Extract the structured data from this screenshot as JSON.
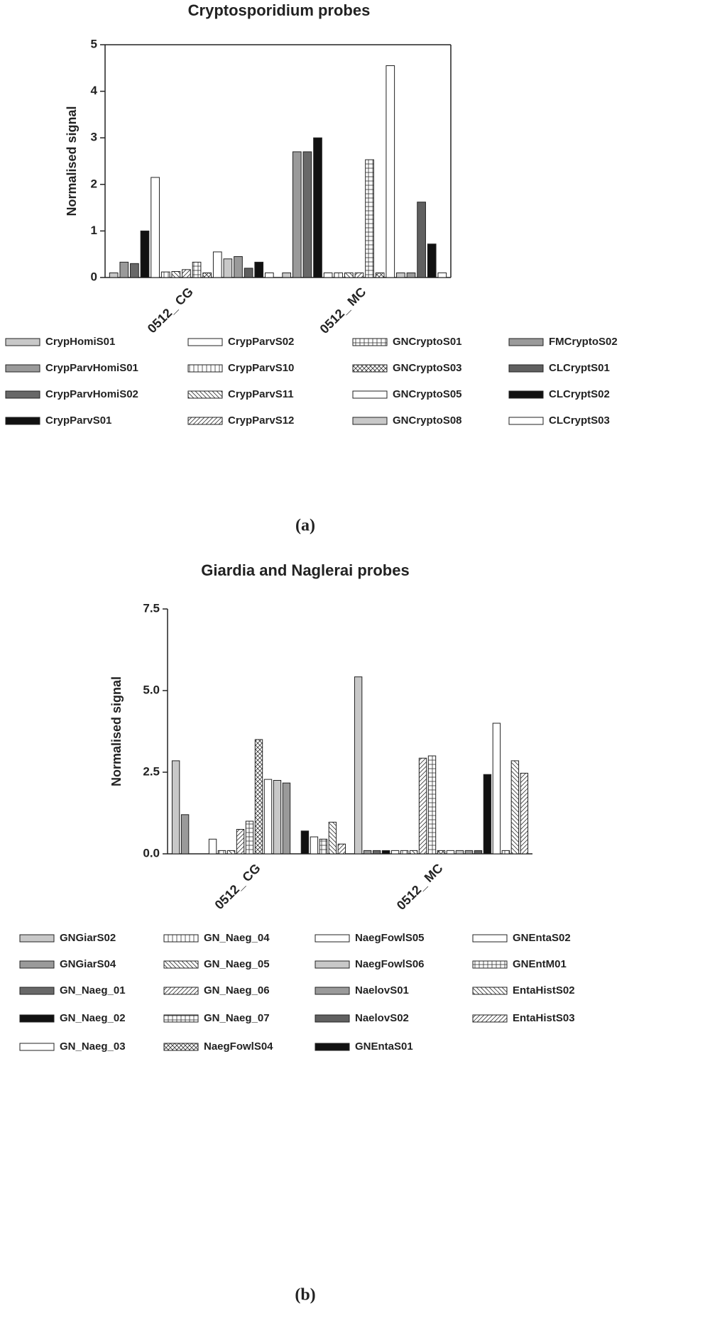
{
  "chart_data": [
    {
      "type": "bar",
      "title": "Cryptosporidium probes",
      "y_label": "Normalised signal",
      "caption": "(a)",
      "frame": "box",
      "categories": [
        "0512_ CG",
        "0512_ MC"
      ],
      "ylim": [
        0,
        5
      ],
      "yticks": [
        0,
        1,
        2,
        3,
        4,
        5
      ],
      "series": [
        {
          "name": "CrypHomiS01",
          "color": "#c8c8c8",
          "values": [
            0.1,
            0.1
          ]
        },
        {
          "name": "CrypParvHomiS01",
          "color": "#9a9a9a",
          "values": [
            0.33,
            2.7
          ]
        },
        {
          "name": "CrypParvHomiS02",
          "color": "#686868",
          "values": [
            0.3,
            2.7
          ]
        },
        {
          "name": "CrypParvS01",
          "color": "#111111",
          "values": [
            1.0,
            3.0
          ]
        },
        {
          "name": "CrypParvS02",
          "color": "#ffffff",
          "values": [
            2.15,
            0.1
          ]
        },
        {
          "name": "CrypParvS10",
          "color": "#ffffff",
          "pattern": "vlines",
          "values": [
            0.12,
            0.1
          ]
        },
        {
          "name": "CrypParvS11",
          "color": "#ffffff",
          "pattern": "diag-left",
          "values": [
            0.13,
            0.1
          ]
        },
        {
          "name": "CrypParvS12",
          "color": "#ffffff",
          "pattern": "diag-right",
          "values": [
            0.17,
            0.1
          ]
        },
        {
          "name": "GNCryptoS01",
          "color": "#ffffff",
          "pattern": "grid",
          "values": [
            0.33,
            2.53
          ]
        },
        {
          "name": "GNCryptoS03",
          "color": "#ffffff",
          "pattern": "cross",
          "values": [
            0.1,
            0.1
          ]
        },
        {
          "name": "GNCryptoS05",
          "color": "#ffffff",
          "values": [
            0.55,
            4.55
          ]
        },
        {
          "name": "GNCryptoS08",
          "color": "#c8c8c8",
          "values": [
            0.4,
            0.1
          ]
        },
        {
          "name": "FMCryptoS02",
          "color": "#9a9a9a",
          "values": [
            0.45,
            0.1
          ]
        },
        {
          "name": "CLCryptS01",
          "color": "#606060",
          "values": [
            0.2,
            1.62
          ]
        },
        {
          "name": "CLCryptS02",
          "color": "#111111",
          "values": [
            0.33,
            0.72
          ]
        },
        {
          "name": "CLCryptS03",
          "color": "#ffffff",
          "values": [
            0.1,
            0.1
          ]
        }
      ]
    },
    {
      "type": "bar",
      "title": "Giardia and Naglerai probes",
      "y_label": "Normalised signal",
      "caption": "(b)",
      "frame": "axes",
      "categories": [
        "0512_ CG",
        "0512_ MC"
      ],
      "ylim": [
        0,
        7.5
      ],
      "yticks": [
        {
          "value": 0,
          "label": "0.0"
        },
        {
          "value": 2.5,
          "label": "2.5"
        },
        {
          "value": 5,
          "label": "5.0"
        },
        {
          "value": 7.5,
          "label": "7.5"
        }
      ],
      "series": [
        {
          "name": "GNGiarS02",
          "color": "#c8c8c8",
          "values": [
            2.85,
            5.42
          ]
        },
        {
          "name": "GNGiarS04",
          "color": "#9a9a9a",
          "values": [
            1.2,
            0.1
          ]
        },
        {
          "name": "GN_Naeg_01",
          "color": "#686868",
          "values": [
            0,
            0.1
          ]
        },
        {
          "name": "GN_Naeg_02",
          "color": "#111111",
          "values": [
            0,
            0.1
          ]
        },
        {
          "name": "GN_Naeg_03",
          "color": "#ffffff",
          "values": [
            0.45,
            0.1
          ]
        },
        {
          "name": "GN_Naeg_04",
          "color": "#ffffff",
          "pattern": "vlines",
          "values": [
            0.1,
            0.1
          ]
        },
        {
          "name": "GN_Naeg_05",
          "color": "#ffffff",
          "pattern": "diag-left",
          "values": [
            0.1,
            0.1
          ]
        },
        {
          "name": "GN_Naeg_06",
          "color": "#ffffff",
          "pattern": "diag-right",
          "values": [
            0.75,
            2.93
          ]
        },
        {
          "name": "GN_Naeg_07",
          "color": "#ffffff",
          "pattern": "grid",
          "values": [
            1.0,
            3.0
          ]
        },
        {
          "name": "NaegFowlS04",
          "color": "#ffffff",
          "pattern": "cross",
          "values": [
            3.5,
            0.1
          ]
        },
        {
          "name": "NaegFowlS05",
          "color": "#ffffff",
          "values": [
            2.28,
            0.1
          ]
        },
        {
          "name": "NaegFowlS06",
          "color": "#c8c8c8",
          "values": [
            2.25,
            0.1
          ]
        },
        {
          "name": "NaelovS01",
          "color": "#9a9a9a",
          "values": [
            2.17,
            0.1
          ]
        },
        {
          "name": "NaelovS02",
          "color": "#606060",
          "values": [
            0,
            0.1
          ]
        },
        {
          "name": "GNEntaS01",
          "color": "#111111",
          "values": [
            0.7,
            2.43
          ]
        },
        {
          "name": "GNEntaS02",
          "color": "#ffffff",
          "values": [
            0.52,
            4.0
          ]
        },
        {
          "name": "GNEntM01",
          "color": "#ffffff",
          "pattern": "grid",
          "values": [
            0.45,
            0.1
          ]
        },
        {
          "name": "EntaHistS02",
          "color": "#ffffff",
          "pattern": "diag-left",
          "values": [
            0.97,
            2.85
          ]
        },
        {
          "name": "EntaHistS03",
          "color": "#ffffff",
          "pattern": "diag-right",
          "values": [
            0.3,
            2.47
          ]
        }
      ]
    }
  ]
}
